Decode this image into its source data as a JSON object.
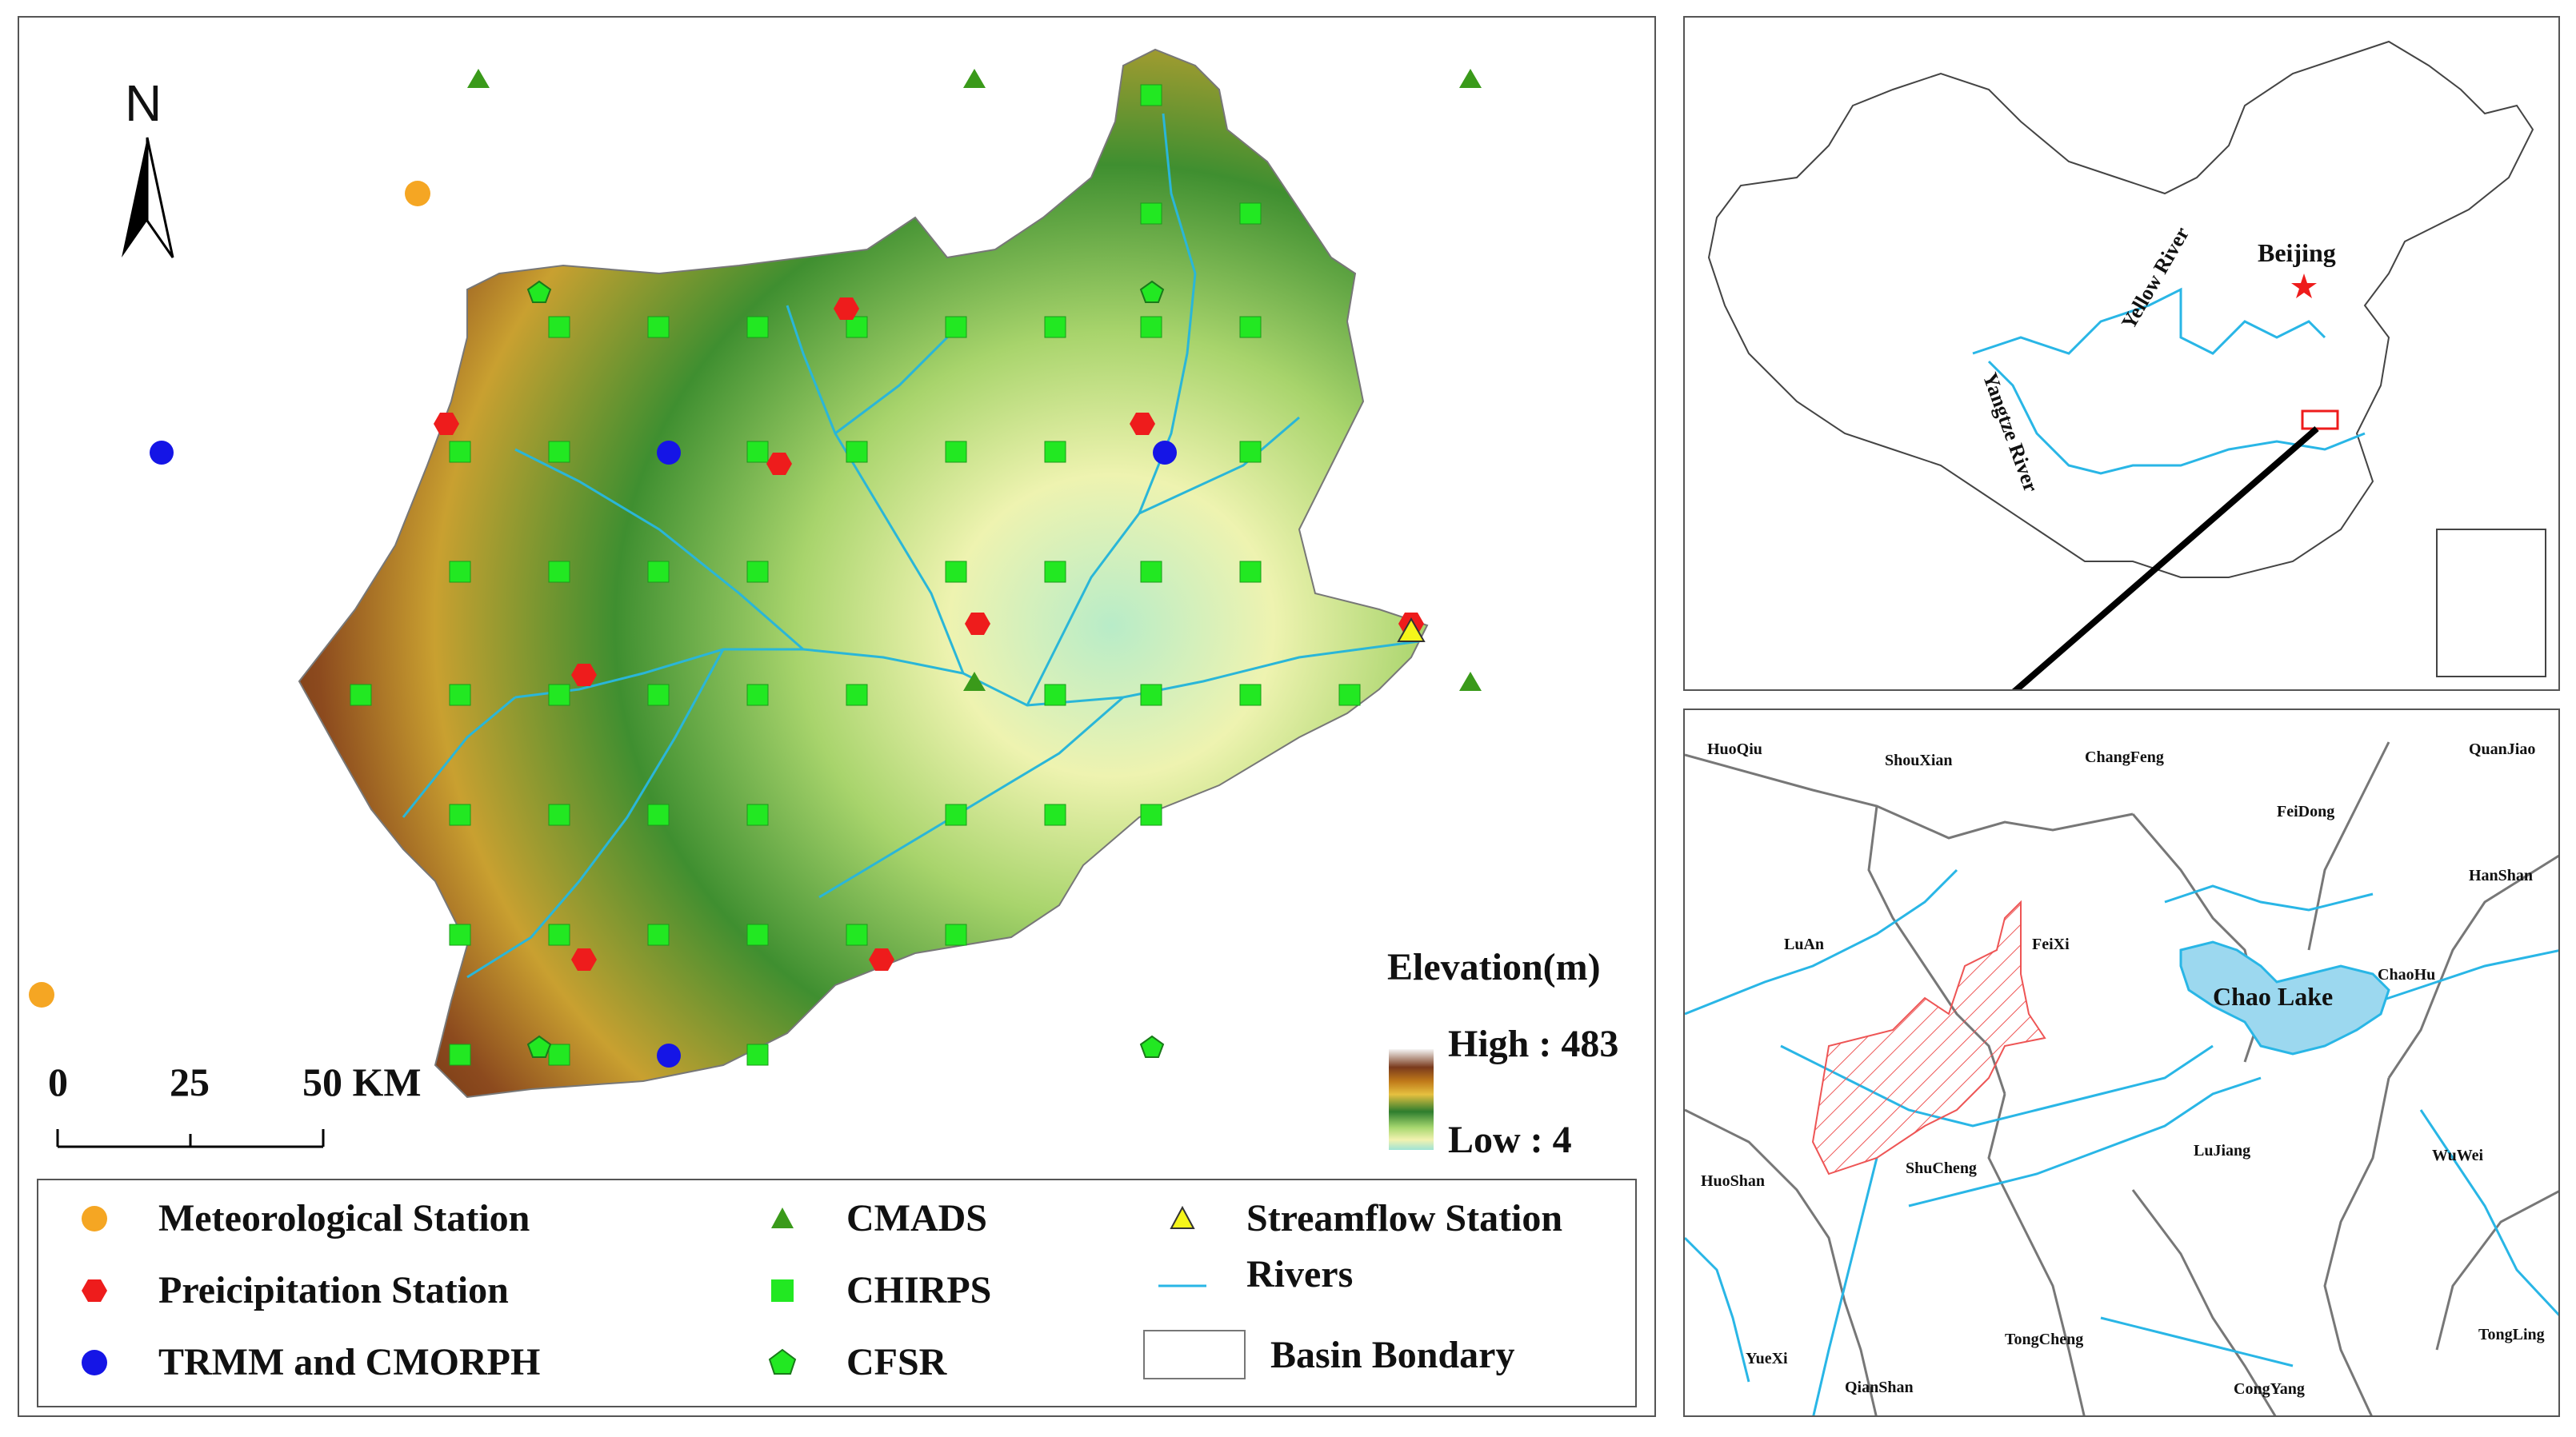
{
  "main_map": {
    "north_label": "N",
    "scale_bar": {
      "labels": [
        "0",
        "25",
        "50 KM"
      ]
    },
    "elevation_legend": {
      "title": "Elevation(m)",
      "high_label": "High : 483",
      "low_label": "Low : 4",
      "colors": [
        "#f4f4f4",
        "#8b4a2a",
        "#b8860b",
        "#e8c84a",
        "#2e8b2e",
        "#9ad46a",
        "#f3f3b0",
        "#9ee0d8"
      ]
    },
    "legend": [
      {
        "label": "Meteorological Station",
        "symbol": "orange-circle",
        "color": "#f5a623"
      },
      {
        "label": "Preicipitation Station",
        "symbol": "red-hexagon",
        "color": "#ee1c1c"
      },
      {
        "label": "TRMM and CMORPH",
        "symbol": "blue-circle",
        "color": "#1515e6"
      },
      {
        "label": "CMADS",
        "symbol": "green-triangle",
        "color": "#3a9a1a"
      },
      {
        "label": "CHIRPS",
        "symbol": "green-square",
        "color": "#22e822"
      },
      {
        "label": "CFSR",
        "symbol": "green-pentagon",
        "color": "#22e822"
      },
      {
        "label": "Streamflow Station",
        "symbol": "yellow-triangle",
        "color": "#f5f51a"
      },
      {
        "label": "Rivers",
        "symbol": "river-line",
        "color": "#29b6e6"
      },
      {
        "label": "Basin Bondary",
        "symbol": "boundary-box",
        "color": "#ffffff"
      }
    ]
  },
  "china_map": {
    "city_label": "Beijing",
    "rivers": [
      "Yellow River",
      "Yangtze River"
    ]
  },
  "detail_map": {
    "lake_label": "Chao Lake",
    "place_labels": [
      "HuoQiu",
      "ShouXian",
      "ChangFeng",
      "QuanJiao",
      "FeiDong",
      "HanShan",
      "LuAn",
      "FeiXi",
      "ChaoHu",
      "ShuCheng",
      "LuJiang",
      "WuWei",
      "HuoShan",
      "YueXi",
      "QianShan",
      "TongCheng",
      "CongYang",
      "TongLing"
    ]
  }
}
